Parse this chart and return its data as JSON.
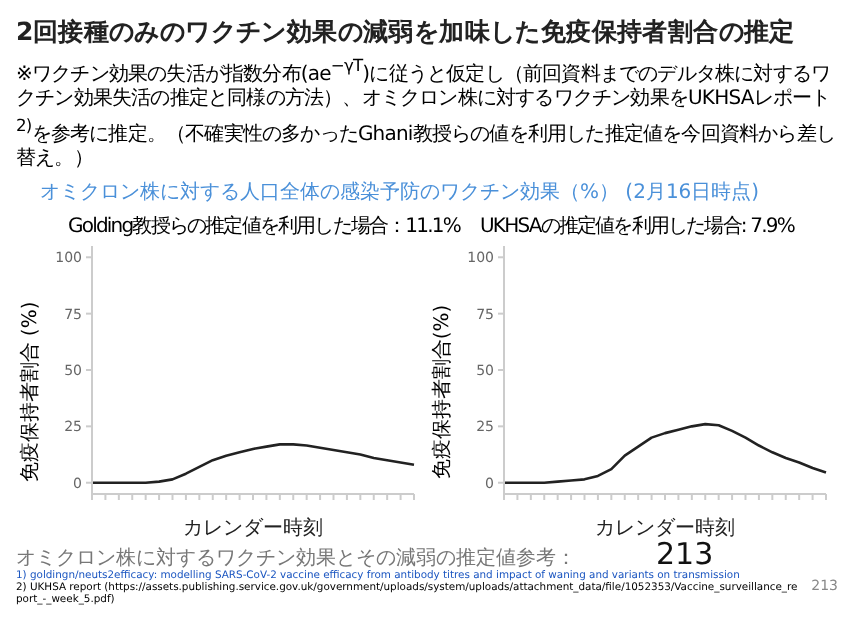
{
  "chart_data": [
    {
      "type": "other",
      "title": "2回接種のみのワクチン効果の減弱を加味した免疫保持者割合の推定",
      "subtitle": "オミクロン株に対する人口全体の感染予防のワクチン効果（%） (2月16日時点)",
      "annotations": [
        "※ワクチン効果の失活が指数分布(ae$^{−γT}$)に従うと仮定し（前回資料までのデルタ株に対するワクチン効果失活の推定と同様の方法）、オミクロン株に対するワクチン効果をUKHSAレポート$^{2)}$を参考に推定。（不確実性の多かったGhani教授らの値を利用した推定値を今回資料から差し替え。）",
        "オミクロン株に対するワクチン効果とその減弱の推定値参考：",
        "1) goldingn/neuts2efficacy: modelling SARS-CoV-2 vaccine efficacy from antibody titres and impact of waning and variants on transmission",
        "2) UKHSA report (https://assets.publishing.service.gov.uk/government/uploads/system/uploads/attachment_data/file/1052353/Vaccine_surveillance_report_-_week_5.pdf)",
        "213",
        "213"
      ]
    },
    {
      "type": "line",
      "title": "Golding教授らの推定値を利用した場合：11.1%",
      "xlabel": "カレンダー時刻",
      "ylabel": "免疫保持者割合 (%)",
      "categories": [
        null,
        null,
        null,
        null,
        null,
        null,
        null,
        null,
        null,
        null,
        null,
        null,
        null,
        null,
        null,
        null,
        null,
        null,
        null,
        null,
        null,
        null,
        null,
        null,
        null
      ],
      "ylim": [
        -5,
        105
      ],
      "yticks": [
        0,
        25,
        50,
        75,
        100
      ],
      "grid": false,
      "legend": false,
      "marker": "none",
      "line_style": "solid",
      "series": [
        {
          "color": "#222222",
          "values": [
            0,
            0,
            0,
            0,
            0,
            0.5,
            1.5,
            4,
            7,
            10,
            12,
            13.5,
            15,
            16,
            17,
            17,
            16.5,
            15.5,
            14.5,
            13.5,
            12.5,
            11,
            10,
            9,
            8
          ]
        }
      ]
    },
    {
      "type": "line",
      "title": "UKHSAの推定値を利用した場合: 7.9%",
      "xlabel": "カレンダー時刻",
      "ylabel": "免疫保持者割合(%)",
      "categories": [
        null,
        null,
        null,
        null,
        null,
        null,
        null,
        null,
        null,
        null,
        null,
        null,
        null,
        null,
        null,
        null,
        null,
        null,
        null,
        null,
        null,
        null,
        null,
        null,
        null
      ],
      "ylim": [
        -5,
        105
      ],
      "yticks": [
        0,
        25,
        50,
        75,
        100
      ],
      "grid": false,
      "legend": false,
      "marker": "none",
      "line_style": "solid",
      "series": [
        {
          "color": "#222222",
          "values": [
            0,
            0,
            0,
            0,
            0.5,
            1,
            1.5,
            3,
            6,
            12,
            16,
            20,
            22,
            23.5,
            25,
            26,
            25.5,
            23,
            20,
            16.5,
            13.5,
            11,
            9,
            6.5,
            4.5
          ]
        }
      ]
    }
  ]
}
